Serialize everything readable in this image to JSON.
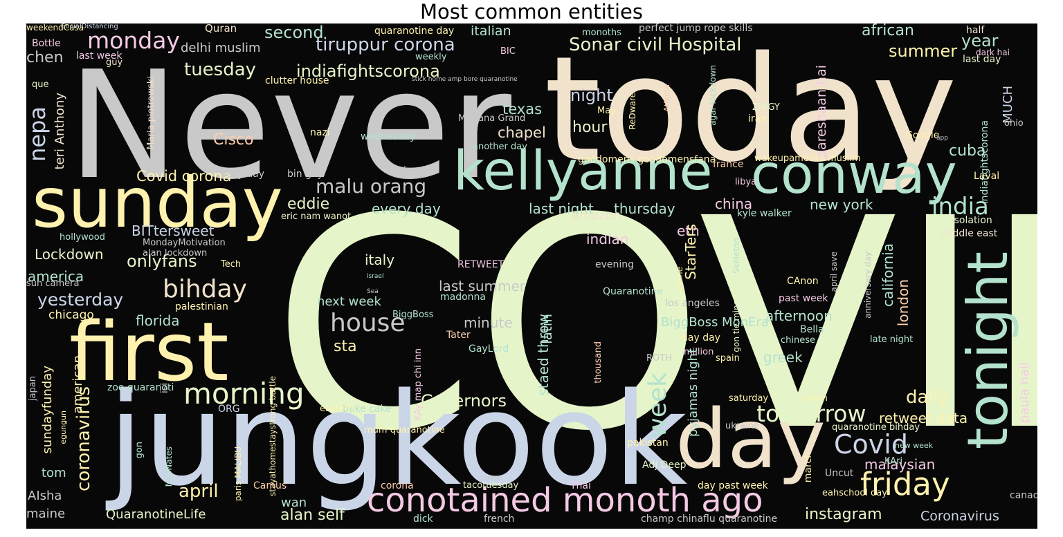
{
  "title": "Most common entities",
  "palette": {
    "gray": "#c9c9c9",
    "beige": "#f1e2cc",
    "lime": "#e6f5c9",
    "blue": "#cbd5e8",
    "teal": "#b3e2cd",
    "yellow": "#fff2ae",
    "pink": "#f4cae4",
    "peach": "#fdcdac"
  },
  "words": [
    {
      "text": "COVID",
      "color": "lime"
    },
    {
      "text": "Never",
      "color": "gray"
    },
    {
      "text": "today",
      "color": "beige"
    },
    {
      "text": "jungkook",
      "color": "blue"
    },
    {
      "text": "first",
      "color": "yellow"
    },
    {
      "text": "sunday",
      "color": "yellow"
    },
    {
      "text": "kellyanne",
      "color": "teal"
    },
    {
      "text": "conway",
      "color": "teal"
    },
    {
      "text": "day",
      "color": "beige"
    },
    {
      "text": "tonight",
      "color": "teal"
    },
    {
      "text": "conotained monoth ago",
      "color": "pink"
    },
    {
      "text": "morning",
      "color": "lime"
    },
    {
      "text": "friday",
      "color": "yellow"
    },
    {
      "text": "Covid",
      "color": "blue"
    },
    {
      "text": "house",
      "color": "gray"
    },
    {
      "text": "bihday",
      "color": "beige"
    },
    {
      "text": "week",
      "color": "teal"
    },
    {
      "text": "tomorrow",
      "color": "lime"
    },
    {
      "text": "india",
      "color": "teal"
    },
    {
      "text": "malu orang",
      "color": "gray"
    },
    {
      "text": "monday",
      "color": "pink"
    },
    {
      "text": "tiruppur corona",
      "color": "blue"
    },
    {
      "text": "Sonar civil Hospital",
      "color": "lime"
    },
    {
      "text": "nepa",
      "color": "blue"
    },
    {
      "text": "tuesday",
      "color": "lime"
    },
    {
      "text": "indiafightscorona",
      "color": "lime"
    },
    {
      "text": "yesterday",
      "color": "blue"
    },
    {
      "text": "april",
      "color": "yellow"
    },
    {
      "text": "onlyfans",
      "color": "lime"
    },
    {
      "text": "coronavirus",
      "color": "yellow"
    },
    {
      "text": "daily",
      "color": "yellow"
    },
    {
      "text": "Governors",
      "color": "lime"
    },
    {
      "text": "instagram",
      "color": "lime"
    },
    {
      "text": "alan self",
      "color": "lime"
    },
    {
      "text": "QuaranotineLife",
      "color": "lime"
    },
    {
      "text": "Coronavirus",
      "color": "blue"
    },
    {
      "text": "second",
      "color": "teal"
    },
    {
      "text": "summer",
      "color": "yellow"
    },
    {
      "text": "african",
      "color": "teal"
    },
    {
      "text": "year",
      "color": "teal"
    },
    {
      "text": "chen",
      "color": "gray"
    },
    {
      "text": "delhi muslim",
      "color": "gray"
    },
    {
      "text": "italian",
      "color": "teal"
    },
    {
      "text": "Quran",
      "color": "beige"
    },
    {
      "text": "Bottle",
      "color": "pink"
    },
    {
      "text": "half",
      "color": "beige"
    },
    {
      "text": "SocialDistancing",
      "color": "blue"
    },
    {
      "text": "quaranotine day",
      "color": "yellow"
    },
    {
      "text": "monoths",
      "color": "teal"
    },
    {
      "text": "perfect jump rope skills",
      "color": "gray"
    },
    {
      "text": "last day",
      "color": "lime"
    },
    {
      "text": "dark hai",
      "color": "pink"
    },
    {
      "text": "last week",
      "color": "pink"
    },
    {
      "text": "BIC",
      "color": "pink"
    },
    {
      "text": "weekly",
      "color": "teal"
    },
    {
      "text": "guy",
      "color": "beige"
    },
    {
      "text": "que",
      "color": "lime"
    },
    {
      "text": "clutter house",
      "color": "yellow"
    },
    {
      "text": "stick home amp bore quaranotine",
      "color": "gray"
    },
    {
      "text": "Maria piotrowski",
      "color": "beige"
    },
    {
      "text": "teri Anthony",
      "color": "beige"
    },
    {
      "text": "night",
      "color": "blue"
    },
    {
      "text": "texas",
      "color": "teal"
    },
    {
      "text": "chapel",
      "color": "beige"
    },
    {
      "text": "hour",
      "color": "lime"
    },
    {
      "text": "Cisco",
      "color": "peach"
    },
    {
      "text": "MAriana Grand",
      "color": "gray"
    },
    {
      "text": "May",
      "color": "yellow"
    },
    {
      "text": "ReDware",
      "color": "yellow"
    },
    {
      "text": "Atlanta",
      "color": "peach"
    },
    {
      "text": "agar lockdown",
      "color": "teal"
    },
    {
      "text": "ZINGY",
      "color": "lime"
    },
    {
      "text": "iran",
      "color": "yellow"
    },
    {
      "text": "pareshaan hai",
      "color": "pink"
    },
    {
      "text": "indiafightscorona",
      "color": "teal"
    },
    {
      "text": "MUCH",
      "color": "blue"
    },
    {
      "text": "ohio",
      "color": "gray"
    },
    {
      "text": "Google",
      "color": "yellow"
    },
    {
      "text": "app",
      "color": "gray"
    },
    {
      "text": "cuba",
      "color": "teal"
    },
    {
      "text": "nazi",
      "color": "yellow"
    },
    {
      "text": "wednesday",
      "color": "teal"
    },
    {
      "text": "another day",
      "color": "teal"
    },
    {
      "text": "Covid corona",
      "color": "yellow"
    },
    {
      "text": "easy day",
      "color": "gray"
    },
    {
      "text": "bin gay",
      "color": "gray"
    },
    {
      "text": "nigerian",
      "color": "gray"
    },
    {
      "text": "goodomens goodomensfana",
      "color": "yellow"
    },
    {
      "text": "wakeupamerica",
      "color": "yellow"
    },
    {
      "text": "muslim",
      "color": "yellow"
    },
    {
      "text": "france",
      "color": "peach"
    },
    {
      "text": "libya",
      "color": "pink"
    },
    {
      "text": "Laval",
      "color": "yellow"
    },
    {
      "text": "eddie",
      "color": "lime"
    },
    {
      "text": "every day",
      "color": "teal"
    },
    {
      "text": "last night",
      "color": "teal"
    },
    {
      "text": "thursday",
      "color": "teal"
    },
    {
      "text": "china",
      "color": "pink"
    },
    {
      "text": "new york",
      "color": "teal"
    },
    {
      "text": "amazon",
      "color": "beige"
    },
    {
      "text": "kyle walker",
      "color": "teal"
    },
    {
      "text": "eric nam wanot",
      "color": "lime"
    },
    {
      "text": "selfisolation",
      "color": "lime"
    },
    {
      "text": "middle east",
      "color": "beige"
    },
    {
      "text": "BITtersweet",
      "color": "blue"
    },
    {
      "text": "hollywood",
      "color": "teal"
    },
    {
      "text": "alan lockdown",
      "color": "gray"
    },
    {
      "text": "MondayMotivation",
      "color": "gray"
    },
    {
      "text": "indian",
      "color": "pink"
    },
    {
      "text": "Lockdown",
      "color": "lime"
    },
    {
      "text": "Tech",
      "color": "yellow"
    },
    {
      "text": "eth",
      "color": "pink"
    },
    {
      "text": "StarTers",
      "color": "yellow"
    },
    {
      "text": "california",
      "color": "teal"
    },
    {
      "text": "america",
      "color": "teal"
    },
    {
      "text": "italy",
      "color": "lime"
    },
    {
      "text": "RETWEET",
      "color": "pink"
    },
    {
      "text": "evening",
      "color": "gray"
    },
    {
      "text": "Skeleton",
      "color": "teal"
    },
    {
      "text": "gon tie mine",
      "color": "lime"
    },
    {
      "text": "meme",
      "color": "yellow"
    },
    {
      "text": "april save",
      "color": "gray"
    },
    {
      "text": "anniversary day",
      "color": "gray"
    },
    {
      "text": "london",
      "color": "peach"
    },
    {
      "text": "sun camera",
      "color": "gray"
    },
    {
      "text": "israel",
      "color": "teal"
    },
    {
      "text": "Sea",
      "color": "gray"
    },
    {
      "text": "last summer",
      "color": "gray"
    },
    {
      "text": "madonna",
      "color": "teal"
    },
    {
      "text": "Quaranotine",
      "color": "teal"
    },
    {
      "text": "CAnon",
      "color": "yellow"
    },
    {
      "text": "past week",
      "color": "pink"
    },
    {
      "text": "los angeles",
      "color": "gray"
    },
    {
      "text": "palestinian",
      "color": "yellow"
    },
    {
      "text": "next week",
      "color": "teal"
    },
    {
      "text": "chicago",
      "color": "yellow"
    },
    {
      "text": "florida",
      "color": "teal"
    },
    {
      "text": "BiggBoss",
      "color": "teal"
    },
    {
      "text": "minute",
      "color": "gray"
    },
    {
      "text": "latin",
      "color": "teal"
    },
    {
      "text": "staed throw",
      "color": "teal"
    },
    {
      "text": "BiggBoss MonEra",
      "color": "teal"
    },
    {
      "text": "afternoon",
      "color": "teal"
    },
    {
      "text": "Bella",
      "color": "teal"
    },
    {
      "text": "chinese",
      "color": "teal"
    },
    {
      "text": "day day",
      "color": "yellow"
    },
    {
      "text": "million",
      "color": "pink"
    },
    {
      "text": "sta",
      "color": "yellow"
    },
    {
      "text": "Tater",
      "color": "peach"
    },
    {
      "text": "late night",
      "color": "teal"
    },
    {
      "text": "greek",
      "color": "teal"
    },
    {
      "text": "GayLord",
      "color": "teal"
    },
    {
      "text": "ROTH",
      "color": "gray"
    },
    {
      "text": "spain",
      "color": "yellow"
    },
    {
      "text": "japan",
      "color": "gray"
    },
    {
      "text": "stayathomestaystrong battle",
      "color": "yellow"
    },
    {
      "text": "sundayfunday",
      "color": "yellow"
    },
    {
      "text": "american",
      "color": "yellow"
    },
    {
      "text": "KAy map chi inn",
      "color": "pink"
    },
    {
      "text": "zoo quaranoti",
      "color": "teal"
    },
    {
      "text": "isi",
      "color": "gray"
    },
    {
      "text": "thousand",
      "color": "peach"
    },
    {
      "text": "pyjamas night",
      "color": "teal"
    },
    {
      "text": "saturday",
      "color": "yellow"
    },
    {
      "text": "moon",
      "color": "yellow"
    },
    {
      "text": "retweet data",
      "color": "yellow"
    },
    {
      "text": "paula nail",
      "color": "pink"
    },
    {
      "text": "bake cake",
      "color": "teal"
    },
    {
      "text": "eastern",
      "color": "yellow"
    },
    {
      "text": "ORG",
      "color": "blue"
    },
    {
      "text": "ukraine",
      "color": "gray"
    },
    {
      "text": "quaranotine bihday",
      "color": "lime"
    },
    {
      "text": "egungun",
      "color": "yellow"
    },
    {
      "text": "mum quaranotine",
      "color": "yellow"
    },
    {
      "text": "tom",
      "color": "teal"
    },
    {
      "text": "gon",
      "color": "teal"
    },
    {
      "text": "pakistan",
      "color": "yellow"
    },
    {
      "text": "new week",
      "color": "teal"
    },
    {
      "text": "malaysian",
      "color": "pink"
    },
    {
      "text": "KAri",
      "color": "teal"
    },
    {
      "text": "paris MALIBU",
      "color": "yellow"
    },
    {
      "text": "NeoNates",
      "color": "teal"
    },
    {
      "text": "Adj Deep",
      "color": "lime"
    },
    {
      "text": "march",
      "color": "yellow"
    },
    {
      "text": "Uncut",
      "color": "gray"
    },
    {
      "text": "taiwan",
      "color": "gray"
    },
    {
      "text": "AIsha",
      "color": "gray"
    },
    {
      "text": "Camus",
      "color": "peach"
    },
    {
      "text": "corona",
      "color": "peach"
    },
    {
      "text": "tacotuesday",
      "color": "lime"
    },
    {
      "text": "Thai",
      "color": "pink"
    },
    {
      "text": "day past week",
      "color": "yellow"
    },
    {
      "text": "eahschool day",
      "color": "yellow"
    },
    {
      "text": "canada",
      "color": "gray"
    },
    {
      "text": "maine",
      "color": "gray"
    },
    {
      "text": "wan",
      "color": "teal"
    },
    {
      "text": "dick",
      "color": "teal"
    },
    {
      "text": "french",
      "color": "gray"
    },
    {
      "text": "champ chinaflu quaranotine",
      "color": "gray"
    },
    {
      "text": "weekendCasa",
      "color": "yellow"
    }
  ]
}
